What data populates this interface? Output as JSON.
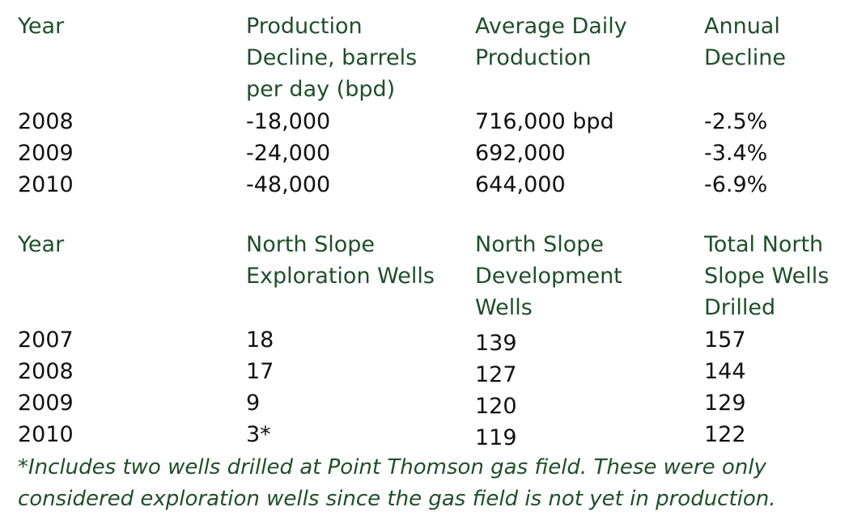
{
  "table1": {
    "headers": [
      [
        "Year"
      ],
      [
        "Production",
        "Decline, barrels",
        "per day (bpd)"
      ],
      [
        "Average Daily",
        "Production"
      ],
      [
        "Annual",
        "Decline"
      ]
    ],
    "rows": [
      [
        "2008",
        "-18,000",
        "716,000 bpd",
        "-2.5%"
      ],
      [
        "2009",
        "-24,000",
        "692,000",
        "-3.4%"
      ],
      [
        "2010",
        "-48,000",
        "644,000",
        "-6.9%"
      ]
    ]
  },
  "table2": {
    "headers": [
      [
        "Year"
      ],
      [
        "North Slope",
        "Exploration Wells"
      ],
      [
        "North Slope",
        "Development",
        "Wells"
      ],
      [
        "Total North",
        "Slope Wells",
        "Drilled"
      ]
    ],
    "rows": [
      [
        "2007",
        "18",
        "139",
        "157"
      ],
      [
        "2008",
        "17",
        "127",
        "144"
      ],
      [
        "2009",
        "9",
        "120",
        "129"
      ],
      [
        "2010",
        "3*",
        "119",
        "122"
      ]
    ]
  },
  "footnote": [
    "*Includes two wells drilled at Point Thomson gas field. These were only",
    "considered exploration wells since the gas field is not yet in production."
  ],
  "colors": {
    "header_text": "#1f4e2a",
    "body_text": "#111111"
  }
}
